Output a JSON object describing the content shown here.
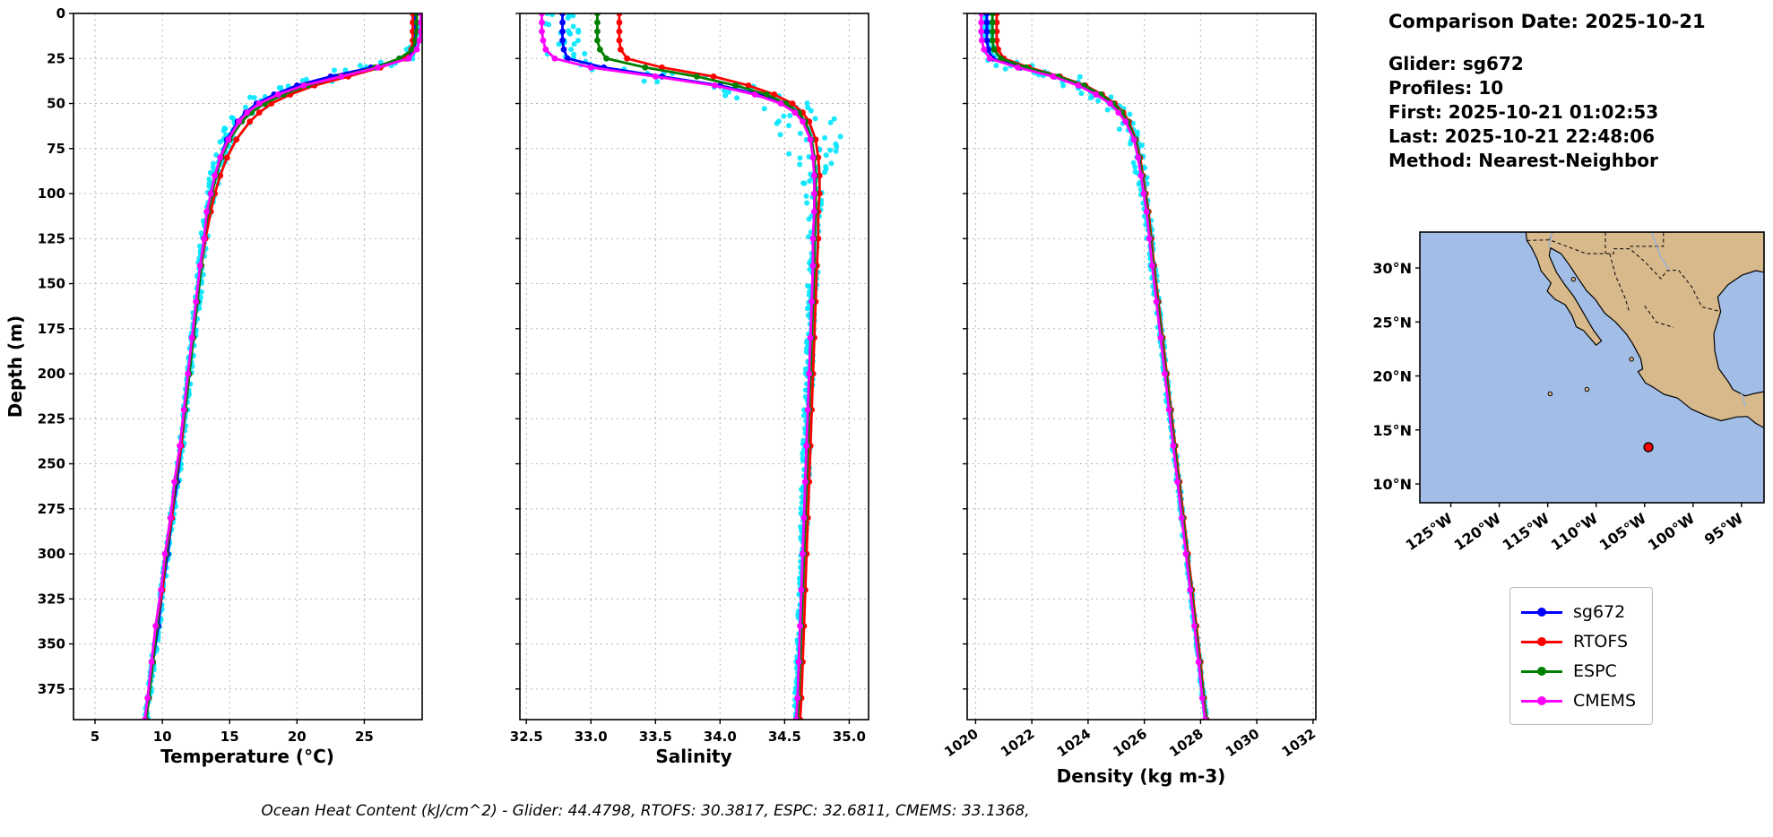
{
  "info_panel": {
    "comparison_date": "Comparison Date: 2025-10-21",
    "glider": "Glider: sg672",
    "profiles": "Profiles: 10",
    "first": "First: 2025-10-21 01:02:53",
    "last": "Last: 2025-10-21 22:48:06",
    "method": "Method: Nearest-Neighbor"
  },
  "footer": "Ocean Heat Content (kJ/cm^2) - Glider: 44.4798,  RTOFS: 30.3817,  ESPC: 32.6811,  CMEMS: 33.1368,",
  "legend": {
    "entries": [
      {
        "label": "sg672",
        "color": "#0000ff"
      },
      {
        "label": "RTOFS",
        "color": "#ff0000"
      },
      {
        "label": "ESPC",
        "color": "#008000"
      },
      {
        "label": "CMEMS",
        "color": "#ff00ff"
      }
    ]
  },
  "chart_data": {
    "type": "line",
    "orientation": "depth-profile",
    "ylabel": "Depth (m)",
    "ylim": [
      0,
      392
    ],
    "ytick_values": [
      0,
      25,
      50,
      75,
      100,
      125,
      150,
      175,
      200,
      225,
      250,
      275,
      300,
      325,
      350,
      375
    ],
    "ytick_labels": [
      "0",
      "25",
      "50",
      "75",
      "100",
      "125",
      "150",
      "175",
      "200",
      "225",
      "250",
      "275",
      "300",
      "325",
      "350",
      "375"
    ],
    "depths": [
      0,
      5,
      10,
      15,
      20,
      25,
      30,
      35,
      40,
      45,
      50,
      55,
      60,
      70,
      80,
      90,
      100,
      110,
      125,
      140,
      160,
      180,
      200,
      220,
      240,
      260,
      280,
      300,
      320,
      340,
      360,
      380,
      392
    ],
    "series_order": [
      "sg672",
      "RTOFS",
      "ESPC",
      "CMEMS"
    ],
    "series_colors": {
      "sg672": "#0000ff",
      "RTOFS": "#ff0000",
      "ESPC": "#008000",
      "CMEMS": "#ff00ff"
    },
    "glider_scatter_color": "#00e5ff",
    "subplots": [
      {
        "id": "temperature",
        "xlabel": "Temperature (°C)",
        "xlim": [
          3.4,
          29.3
        ],
        "xtick_values": [
          5,
          10,
          15,
          20,
          25
        ],
        "xtick_labels": [
          "5",
          "10",
          "15",
          "20",
          "25"
        ],
        "series": {
          "sg672": [
            28.8,
            28.8,
            28.8,
            28.8,
            28.7,
            28.2,
            25.5,
            22.5,
            20.0,
            18.3,
            17.0,
            16.2,
            15.6,
            14.8,
            14.3,
            13.9,
            13.6,
            13.4,
            13.1,
            12.9,
            12.6,
            12.3,
            12.0,
            11.7,
            11.4,
            11.1,
            10.7,
            10.4,
            10.0,
            9.7,
            9.3,
            9.0,
            8.8
          ],
          "RTOFS": [
            28.6,
            28.6,
            28.6,
            28.6,
            28.5,
            28.0,
            26.2,
            23.8,
            21.3,
            19.5,
            18.1,
            17.2,
            16.5,
            15.5,
            14.8,
            14.3,
            13.9,
            13.6,
            13.2,
            12.9,
            12.6,
            12.3,
            12.0,
            11.7,
            11.4,
            11.0,
            10.7,
            10.3,
            10.0,
            9.6,
            9.3,
            9.0,
            8.8
          ],
          "ESPC": [
            28.9,
            28.9,
            28.9,
            28.8,
            28.6,
            27.6,
            25.8,
            23.2,
            20.8,
            19.0,
            17.6,
            16.6,
            15.9,
            15.0,
            14.4,
            14.0,
            13.7,
            13.4,
            13.1,
            12.9,
            12.6,
            12.3,
            12.0,
            11.7,
            11.3,
            11.0,
            10.6,
            10.3,
            9.9,
            9.6,
            9.3,
            9.0,
            8.8
          ],
          "CMEMS": [
            29.2,
            29.2,
            29.2,
            29.1,
            28.9,
            28.3,
            26.0,
            23.3,
            20.5,
            18.6,
            17.2,
            16.3,
            15.7,
            14.9,
            14.3,
            13.9,
            13.6,
            13.3,
            13.1,
            12.8,
            12.5,
            12.2,
            11.9,
            11.6,
            11.3,
            10.9,
            10.6,
            10.2,
            9.9,
            9.5,
            9.2,
            8.9,
            8.7
          ]
        },
        "glider_scatter_spread": [
          0.25,
          0.25,
          0.25,
          0.3,
          0.4,
          0.8,
          1.3,
          1.5,
          1.5,
          1.4,
          1.2,
          1.0,
          0.9,
          0.7,
          0.5,
          0.4,
          0.35,
          0.3,
          0.28,
          0.25,
          0.22,
          0.2,
          0.2,
          0.18,
          0.18,
          0.16,
          0.16,
          0.15,
          0.15,
          0.14,
          0.14,
          0.13,
          0.13
        ]
      },
      {
        "id": "salinity",
        "xlabel": "Salinity",
        "xlim": [
          32.45,
          35.15
        ],
        "xtick_values": [
          32.5,
          33.0,
          33.5,
          34.0,
          34.5,
          35.0
        ],
        "xtick_labels": [
          "32.5",
          "33.0",
          "33.5",
          "34.0",
          "34.5",
          "35.0"
        ],
        "series": {
          "sg672": [
            32.78,
            32.78,
            32.78,
            32.78,
            32.79,
            32.82,
            33.1,
            33.55,
            34.0,
            34.3,
            34.5,
            34.6,
            34.65,
            34.7,
            34.72,
            34.73,
            34.73,
            34.73,
            34.72,
            34.72,
            34.71,
            34.7,
            34.69,
            34.68,
            34.67,
            34.66,
            34.65,
            34.64,
            34.63,
            34.62,
            34.61,
            34.6,
            34.59
          ],
          "RTOFS": [
            33.22,
            33.22,
            33.22,
            33.22,
            33.23,
            33.28,
            33.55,
            33.95,
            34.22,
            34.42,
            34.56,
            34.64,
            34.69,
            34.74,
            34.76,
            34.77,
            34.77,
            34.76,
            34.76,
            34.75,
            34.74,
            34.73,
            34.72,
            34.71,
            34.7,
            34.69,
            34.68,
            34.67,
            34.66,
            34.65,
            34.64,
            34.63,
            34.62
          ],
          "ESPC": [
            33.05,
            33.05,
            33.05,
            33.05,
            33.07,
            33.12,
            33.42,
            33.82,
            34.12,
            34.36,
            34.51,
            34.61,
            34.66,
            34.71,
            34.73,
            34.74,
            34.74,
            34.74,
            34.73,
            34.73,
            34.72,
            34.71,
            34.7,
            34.69,
            34.68,
            34.67,
            34.66,
            34.65,
            34.64,
            34.63,
            34.62,
            34.61,
            34.6
          ],
          "CMEMS": [
            32.62,
            32.62,
            32.62,
            32.63,
            32.65,
            32.72,
            33.0,
            33.5,
            33.96,
            34.27,
            34.47,
            34.58,
            34.64,
            34.7,
            34.72,
            34.73,
            34.73,
            34.73,
            34.72,
            34.72,
            34.71,
            34.7,
            34.69,
            34.68,
            34.67,
            34.66,
            34.65,
            34.64,
            34.63,
            34.62,
            34.61,
            34.6,
            34.59
          ]
        },
        "glider_scatter_spread": [
          0.15,
          0.15,
          0.15,
          0.15,
          0.15,
          0.2,
          0.3,
          0.4,
          0.35,
          0.3,
          0.3,
          0.3,
          0.32,
          0.3,
          0.2,
          0.12,
          0.07,
          0.05,
          0.04,
          0.04,
          0.04,
          0.03,
          0.03,
          0.03,
          0.03,
          0.03,
          0.03,
          0.02,
          0.02,
          0.02,
          0.02,
          0.02,
          0.02
        ]
      },
      {
        "id": "density",
        "xlabel": "Density (kg m-3)",
        "xlim": [
          1019.7,
          1032.1
        ],
        "xtick_values": [
          1020,
          1022,
          1024,
          1026,
          1028,
          1030,
          1032
        ],
        "xtick_labels": [
          "1020",
          "1022",
          "1024",
          "1026",
          "1028",
          "1030",
          "1032"
        ],
        "xtick_rotation": -35,
        "series": {
          "sg672": [
            1020.4,
            1020.4,
            1020.4,
            1020.4,
            1020.45,
            1020.6,
            1021.6,
            1022.8,
            1023.7,
            1024.3,
            1024.8,
            1025.1,
            1025.35,
            1025.65,
            1025.8,
            1025.9,
            1026.0,
            1026.1,
            1026.2,
            1026.3,
            1026.45,
            1026.6,
            1026.75,
            1026.9,
            1027.05,
            1027.2,
            1027.35,
            1027.5,
            1027.65,
            1027.8,
            1027.95,
            1028.1,
            1028.2
          ],
          "RTOFS": [
            1020.75,
            1020.75,
            1020.75,
            1020.75,
            1020.8,
            1021.0,
            1021.9,
            1023.0,
            1023.9,
            1024.5,
            1024.95,
            1025.25,
            1025.45,
            1025.7,
            1025.85,
            1025.95,
            1026.05,
            1026.15,
            1026.25,
            1026.35,
            1026.5,
            1026.65,
            1026.8,
            1026.95,
            1027.1,
            1027.25,
            1027.4,
            1027.55,
            1027.7,
            1027.85,
            1028.0,
            1028.12,
            1028.22
          ],
          "ESPC": [
            1020.6,
            1020.6,
            1020.6,
            1020.6,
            1020.65,
            1020.9,
            1021.8,
            1022.95,
            1023.85,
            1024.45,
            1024.9,
            1025.2,
            1025.4,
            1025.68,
            1025.82,
            1025.92,
            1026.02,
            1026.12,
            1026.22,
            1026.32,
            1026.47,
            1026.62,
            1026.77,
            1026.92,
            1027.07,
            1027.22,
            1027.37,
            1027.52,
            1027.67,
            1027.82,
            1027.97,
            1028.1,
            1028.2
          ],
          "CMEMS": [
            1020.2,
            1020.2,
            1020.2,
            1020.22,
            1020.3,
            1020.5,
            1021.5,
            1022.75,
            1023.65,
            1024.28,
            1024.78,
            1025.08,
            1025.33,
            1025.63,
            1025.78,
            1025.88,
            1025.98,
            1026.08,
            1026.18,
            1026.28,
            1026.43,
            1026.58,
            1026.73,
            1026.88,
            1027.03,
            1027.18,
            1027.33,
            1027.48,
            1027.63,
            1027.78,
            1027.93,
            1028.06,
            1028.16
          ]
        },
        "glider_scatter_spread": [
          0.2,
          0.2,
          0.2,
          0.2,
          0.25,
          0.4,
          0.7,
          0.8,
          0.7,
          0.6,
          0.5,
          0.4,
          0.35,
          0.3,
          0.25,
          0.2,
          0.15,
          0.12,
          0.1,
          0.1,
          0.08,
          0.08,
          0.08,
          0.07,
          0.07,
          0.06,
          0.06,
          0.06,
          0.05,
          0.05,
          0.05,
          0.05,
          0.05
        ]
      }
    ]
  },
  "map": {
    "extent": {
      "lon": [
        -128.2,
        -92.67
      ],
      "lat": [
        8.26,
        33.32
      ]
    },
    "ocean_color": "#a2bde6",
    "land_color": "#d8b98c",
    "river_color": "#8ab4e8",
    "lon_ticks": [
      {
        "value": -125,
        "label": "125°W"
      },
      {
        "value": -120,
        "label": "120°W"
      },
      {
        "value": -115,
        "label": "115°W"
      },
      {
        "value": -110,
        "label": "110°W"
      },
      {
        "value": -105,
        "label": "105°W"
      },
      {
        "value": -100,
        "label": "100°W"
      },
      {
        "value": -95,
        "label": "95°W"
      }
    ],
    "lat_ticks": [
      {
        "value": 30,
        "label": "30°N"
      },
      {
        "value": 25,
        "label": "25°N"
      },
      {
        "value": 20,
        "label": "20°N"
      },
      {
        "value": 15,
        "label": "15°N"
      },
      {
        "value": 10,
        "label": "10°N"
      }
    ],
    "glider_position": {
      "lon": -104.6,
      "lat": 13.4,
      "color": "#ff0000"
    },
    "land_polygons": [
      [
        [
          -117.25,
          33.32
        ],
        [
          -117.15,
          32.55
        ],
        [
          -116.65,
          31.85
        ],
        [
          -116.05,
          30.75
        ],
        [
          -115.7,
          29.75
        ],
        [
          -114.65,
          28.6
        ],
        [
          -115.05,
          27.85
        ],
        [
          -114.25,
          27.1
        ],
        [
          -113.2,
          26.6
        ],
        [
          -112.5,
          25.6
        ],
        [
          -112.05,
          24.55
        ],
        [
          -111.3,
          24.2
        ],
        [
          -110.0,
          22.85
        ],
        [
          -109.45,
          23.25
        ],
        [
          -110.25,
          24.2
        ],
        [
          -110.65,
          24.8
        ],
        [
          -111.35,
          25.9
        ],
        [
          -112.3,
          27.35
        ],
        [
          -113.2,
          28.4
        ],
        [
          -114.1,
          29.6
        ],
        [
          -114.85,
          31.15
        ],
        [
          -114.7,
          31.85
        ],
        [
          -113.6,
          31.3
        ],
        [
          -112.75,
          30.25
        ],
        [
          -111.9,
          29.1
        ],
        [
          -111.0,
          27.9
        ],
        [
          -110.1,
          27.1
        ],
        [
          -109.1,
          25.8
        ],
        [
          -108.0,
          25.0
        ],
        [
          -106.9,
          23.9
        ],
        [
          -106.3,
          23.1
        ],
        [
          -105.4,
          21.6
        ],
        [
          -105.2,
          20.65
        ],
        [
          -105.68,
          20.4
        ],
        [
          -104.9,
          19.35
        ],
        [
          -104.1,
          18.95
        ],
        [
          -103.0,
          18.3
        ],
        [
          -101.6,
          17.95
        ],
        [
          -100.2,
          16.95
        ],
        [
          -98.6,
          16.3
        ],
        [
          -97.1,
          15.85
        ],
        [
          -95.5,
          16.2
        ],
        [
          -94.4,
          16.25
        ],
        [
          -93.5,
          15.6
        ],
        [
          -92.67,
          15.2
        ],
        [
          -92.67,
          18.55
        ],
        [
          -93.8,
          18.35
        ],
        [
          -94.6,
          18.15
        ],
        [
          -95.9,
          18.75
        ],
        [
          -96.35,
          19.45
        ],
        [
          -97.35,
          20.7
        ],
        [
          -97.75,
          22.3
        ],
        [
          -97.85,
          23.9
        ],
        [
          -97.15,
          25.95
        ],
        [
          -97.45,
          27.3
        ],
        [
          -96.4,
          28.45
        ],
        [
          -94.9,
          29.35
        ],
        [
          -93.5,
          29.75
        ],
        [
          -92.67,
          29.6
        ],
        [
          -92.67,
          33.32
        ]
      ]
    ],
    "islands": [
      [
        -106.35,
        21.55
      ],
      [
        -110.95,
        18.75
      ],
      [
        -114.75,
        18.35
      ],
      [
        -112.35,
        28.95
      ]
    ],
    "state_lines": [
      [
        [
          -117.15,
          32.55
        ],
        [
          -114.8,
          32.6
        ],
        [
          -111.05,
          31.33
        ],
        [
          -108.2,
          31.33
        ],
        [
          -108.2,
          31.78
        ],
        [
          -106.53,
          31.78
        ],
        [
          -105.0,
          30.6
        ],
        [
          -103.3,
          29.0
        ],
        [
          -102.7,
          29.75
        ],
        [
          -101.5,
          29.8
        ],
        [
          -100.1,
          28.2
        ],
        [
          -99.1,
          26.4
        ],
        [
          -97.15,
          25.95
        ]
      ],
      [
        [
          -109.05,
          33.32
        ],
        [
          -109.05,
          31.33
        ]
      ],
      [
        [
          -106.53,
          32.0
        ],
        [
          -103.05,
          32.0
        ],
        [
          -103.05,
          33.32
        ]
      ],
      [
        [
          -114.82,
          32.6
        ],
        [
          -114.5,
          33.32
        ]
      ],
      [
        [
          -108.6,
          31.33
        ],
        [
          -108.0,
          29.3
        ],
        [
          -107.0,
          27.2
        ],
        [
          -106.6,
          26.0
        ]
      ],
      [
        [
          -105.0,
          26.5
        ],
        [
          -103.8,
          25.0
        ],
        [
          -102.0,
          24.5
        ]
      ]
    ],
    "rivers": [
      [
        [
          -114.55,
          33.32
        ],
        [
          -114.8,
          32.4
        ],
        [
          -114.85,
          31.9
        ]
      ],
      [
        [
          -104.3,
          33.32
        ],
        [
          -103.3,
          31.0
        ],
        [
          -102.5,
          29.85
        ]
      ],
      [
        [
          -95.0,
          18.4
        ],
        [
          -94.6,
          17.2
        ]
      ]
    ]
  }
}
